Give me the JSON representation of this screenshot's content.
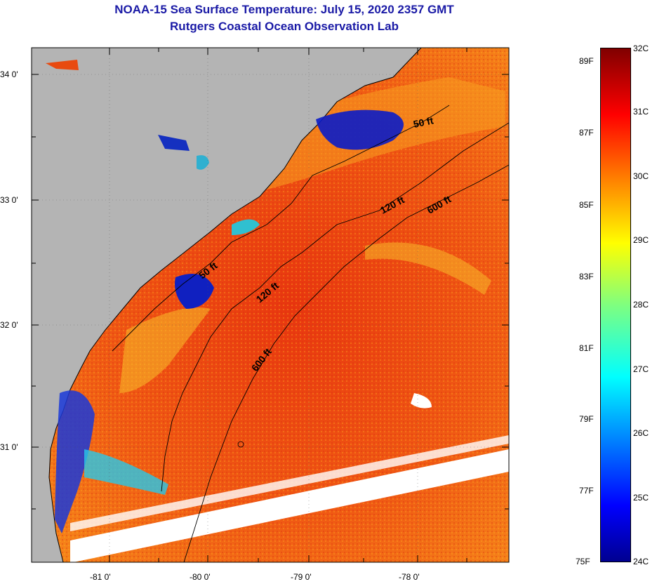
{
  "header": {
    "title": "NOAA-15 Sea Surface Temperature:  July 15, 2020 2357 GMT",
    "subtitle": "Rutgers Coastal Ocean Observation Lab"
  },
  "map": {
    "lat_labels": [
      "34 0'",
      "33 0'",
      "32 0'",
      "31 0'"
    ],
    "lon_labels": [
      "-81 0'",
      "-80 0'",
      "-79 0'",
      "-78 0'"
    ],
    "isobath_labels": [
      "50 ft",
      "50 ft",
      "120 ft",
      "120 ft",
      "600 ft",
      "600 ft"
    ],
    "colors": {
      "land": "#b4b4b4",
      "cloud": "#ffffff",
      "warm_water": "#ef5a12",
      "frame": "#000000"
    }
  },
  "colorbar": {
    "fahrenheit": [
      "89F",
      "87F",
      "85F",
      "83F",
      "81F",
      "79F",
      "77F",
      "75F"
    ],
    "celsius": [
      "32C",
      "31C",
      "30C",
      "29C",
      "28C",
      "27C",
      "26C",
      "25C",
      "24C"
    ],
    "colormap": "jet"
  }
}
